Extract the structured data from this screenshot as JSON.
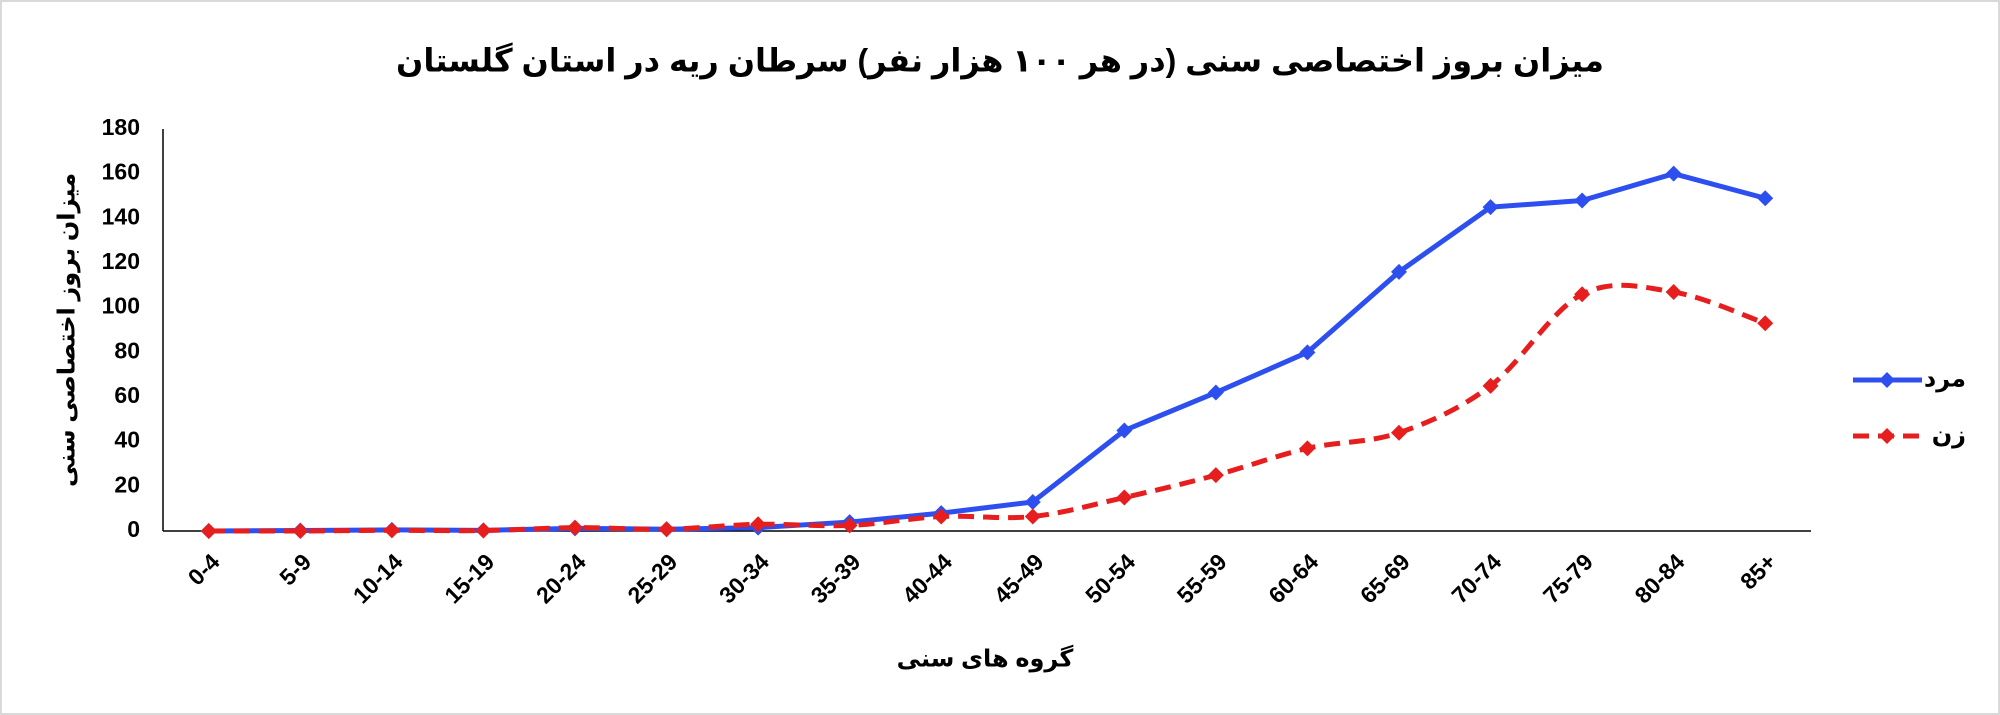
{
  "chart_data": {
    "type": "line",
    "title": "میزان بروز اختصاصی سنی (در هر ۱۰۰ هزار نفر) سرطان ریه در استان گلستان",
    "x_label": "گروه های سنی",
    "y_label": "میزان بروز اختصاصی سنی",
    "categories": [
      "0-4",
      "5-9",
      "10-14",
      "15-19",
      "20-24",
      "25-29",
      "30-34",
      "35-39",
      "40-44",
      "45-49",
      "50-54",
      "55-59",
      "60-64",
      "65-69",
      "70-74",
      "75-79",
      "80-84",
      "85+"
    ],
    "series": [
      {
        "name": "مرد",
        "color": "#2e4ff0",
        "dash": false,
        "smooth": false,
        "values": [
          0,
          0.2,
          0.5,
          0.3,
          1.2,
          0.8,
          1.5,
          4,
          8,
          13,
          45,
          62,
          80,
          116,
          145,
          148,
          160,
          149
        ]
      },
      {
        "name": "زن",
        "color": "#e61e1e",
        "dash": true,
        "smooth": true,
        "values": [
          0,
          0,
          0.3,
          0.2,
          1.5,
          0.8,
          3,
          2.5,
          6.5,
          6.5,
          15,
          25,
          37,
          44,
          65,
          106,
          107,
          93
        ]
      }
    ],
    "ylim": [
      0,
      180
    ],
    "yticks": [
      0,
      20,
      40,
      60,
      80,
      100,
      120,
      140,
      160,
      180
    ],
    "grid": false,
    "legend": "right"
  }
}
